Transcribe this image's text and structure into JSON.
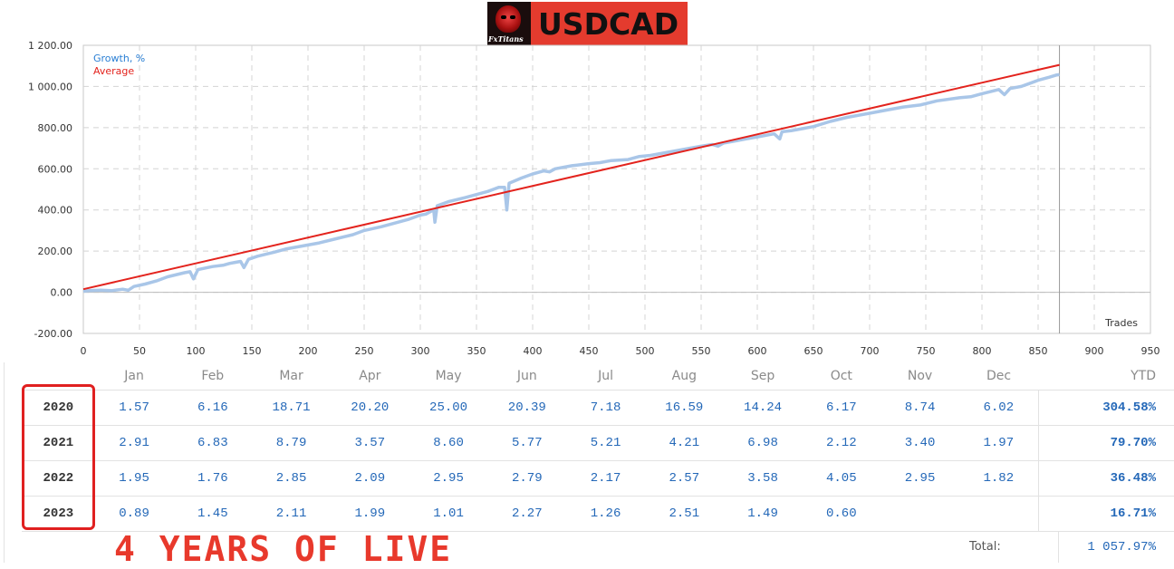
{
  "header": {
    "title": "USDCAD",
    "logo_text": "FxTitans"
  },
  "chart_data": {
    "type": "line",
    "xlabel": "Trades",
    "xlim": [
      0,
      950
    ],
    "ylim": [
      -200,
      1200
    ],
    "x_ticks": [
      "0",
      "50",
      "100",
      "150",
      "200",
      "250",
      "300",
      "350",
      "400",
      "450",
      "500",
      "550",
      "600",
      "650",
      "700",
      "750",
      "800",
      "850",
      "900",
      "950"
    ],
    "y_ticks": [
      "1 200.00",
      "1 000.00",
      "800.00",
      "600.00",
      "400.00",
      "200.00",
      "0.00",
      "-200.00"
    ],
    "grid": true,
    "legend_position": "top-left",
    "cursor_x": 869,
    "series": [
      {
        "name": "Growth, %",
        "color": "#a9c6e8",
        "points": [
          [
            0,
            5
          ],
          [
            5,
            8
          ],
          [
            15,
            10
          ],
          [
            25,
            8
          ],
          [
            35,
            15
          ],
          [
            40,
            10
          ],
          [
            45,
            28
          ],
          [
            55,
            40
          ],
          [
            65,
            55
          ],
          [
            75,
            75
          ],
          [
            90,
            95
          ],
          [
            95,
            100
          ],
          [
            98,
            65
          ],
          [
            102,
            110
          ],
          [
            115,
            125
          ],
          [
            125,
            132
          ],
          [
            130,
            140
          ],
          [
            135,
            145
          ],
          [
            140,
            150
          ],
          [
            143,
            120
          ],
          [
            147,
            160
          ],
          [
            155,
            175
          ],
          [
            170,
            195
          ],
          [
            180,
            210
          ],
          [
            195,
            225
          ],
          [
            210,
            240
          ],
          [
            225,
            260
          ],
          [
            240,
            280
          ],
          [
            250,
            300
          ],
          [
            265,
            318
          ],
          [
            280,
            340
          ],
          [
            290,
            355
          ],
          [
            300,
            375
          ],
          [
            305,
            380
          ],
          [
            310,
            395
          ],
          [
            312,
            395
          ],
          [
            313,
            340
          ],
          [
            315,
            420
          ],
          [
            325,
            440
          ],
          [
            340,
            460
          ],
          [
            350,
            475
          ],
          [
            360,
            490
          ],
          [
            365,
            500
          ],
          [
            370,
            510
          ],
          [
            375,
            510
          ],
          [
            377,
            400
          ],
          [
            379,
            530
          ],
          [
            390,
            555
          ],
          [
            400,
            575
          ],
          [
            410,
            590
          ],
          [
            415,
            585
          ],
          [
            420,
            600
          ],
          [
            435,
            615
          ],
          [
            450,
            625
          ],
          [
            460,
            630
          ],
          [
            470,
            640
          ],
          [
            485,
            645
          ],
          [
            495,
            660
          ],
          [
            505,
            665
          ],
          [
            520,
            680
          ],
          [
            530,
            690
          ],
          [
            540,
            700
          ],
          [
            550,
            710
          ],
          [
            560,
            718
          ],
          [
            565,
            710
          ],
          [
            570,
            725
          ],
          [
            580,
            735
          ],
          [
            590,
            745
          ],
          [
            600,
            755
          ],
          [
            610,
            765
          ],
          [
            615,
            770
          ],
          [
            620,
            745
          ],
          [
            622,
            780
          ],
          [
            630,
            785
          ],
          [
            640,
            795
          ],
          [
            650,
            805
          ],
          [
            665,
            830
          ],
          [
            680,
            850
          ],
          [
            700,
            870
          ],
          [
            715,
            885
          ],
          [
            730,
            900
          ],
          [
            745,
            910
          ],
          [
            760,
            930
          ],
          [
            780,
            945
          ],
          [
            790,
            950
          ],
          [
            800,
            965
          ],
          [
            815,
            985
          ],
          [
            820,
            960
          ],
          [
            825,
            990
          ],
          [
            835,
            1000
          ],
          [
            840,
            1010
          ],
          [
            850,
            1030
          ],
          [
            860,
            1045
          ],
          [
            866,
            1055
          ],
          [
            869,
            1058
          ]
        ]
      },
      {
        "name": "Average",
        "color": "#e3231d",
        "points": [
          [
            0,
            15
          ],
          [
            869,
            1105
          ]
        ]
      }
    ]
  },
  "monthly_table": {
    "columns": [
      "Jan",
      "Feb",
      "Mar",
      "Apr",
      "May",
      "Jun",
      "Jul",
      "Aug",
      "Sep",
      "Oct",
      "Nov",
      "Dec"
    ],
    "ytd_header": "YTD",
    "rows": [
      {
        "year": "2020",
        "values": [
          "1.57",
          "6.16",
          "18.71",
          "20.20",
          "25.00",
          "20.39",
          "7.18",
          "16.59",
          "14.24",
          "6.17",
          "8.74",
          "6.02"
        ],
        "ytd": "304.58%"
      },
      {
        "year": "2021",
        "values": [
          "2.91",
          "6.83",
          "8.79",
          "3.57",
          "8.60",
          "5.77",
          "5.21",
          "4.21",
          "6.98",
          "2.12",
          "3.40",
          "1.97"
        ],
        "ytd": "79.70%"
      },
      {
        "year": "2022",
        "values": [
          "1.95",
          "1.76",
          "2.85",
          "2.09",
          "2.95",
          "2.79",
          "2.17",
          "2.57",
          "3.58",
          "4.05",
          "2.95",
          "1.82"
        ],
        "ytd": "36.48%"
      },
      {
        "year": "2023",
        "values": [
          "0.89",
          "1.45",
          "2.11",
          "1.99",
          "1.01",
          "2.27",
          "1.26",
          "2.51",
          "1.49",
          "0.60",
          "",
          ""
        ],
        "ytd": "16.71%"
      }
    ],
    "total_label": "Total:",
    "total_value": "1 057.97%"
  },
  "caption": "4 YEARS OF LIVE"
}
